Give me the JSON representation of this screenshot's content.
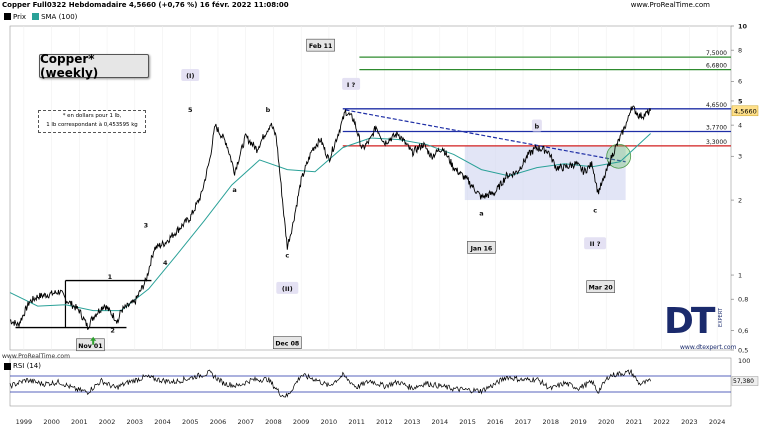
{
  "header": {
    "title": "Copper Full0322 Hebdomadaire 4,5660 (+0,76 %) 16 févr. 2022 11:08:00",
    "site": "www.ProRealTime.com"
  },
  "legend": [
    {
      "label": "Prix",
      "color": "#000000"
    },
    {
      "label": "SMA (100)",
      "color": "#2aa198"
    }
  ],
  "main_title": "Copper* (weekly)",
  "note": {
    "line1": "* en dollars pour 1 lb,",
    "line2": "1 lb correspondant à 0,453595 kg"
  },
  "colors": {
    "price": "#000000",
    "sma": "#2aa198",
    "green": "#2e8b2e",
    "blue": "#1f2fa6",
    "red": "#d21f1f",
    "zone": "#cfd3f0"
  },
  "chart_data": {
    "type": "line",
    "scale": "log",
    "ylim": [
      0.5,
      10
    ],
    "xlim": [
      1999,
      2025
    ],
    "x_ticks": [
      "1999",
      "2000",
      "2001",
      "2002",
      "2003",
      "2004",
      "2005",
      "2006",
      "2007",
      "2008",
      "2009",
      "2010",
      "2011",
      "2012",
      "2013",
      "2014",
      "2015",
      "2016",
      "2017",
      "2018",
      "2019",
      "2020",
      "2021",
      "2022",
      "2023",
      "2024"
    ],
    "y_ticks": [
      "10",
      "8",
      "6",
      "5",
      "4",
      "3",
      "2",
      "1",
      "0,8",
      "0,6",
      "0,5"
    ],
    "series": [
      {
        "name": "Prix",
        "points": [
          [
            1999.0,
            0.66
          ],
          [
            1999.3,
            0.63
          ],
          [
            1999.7,
            0.78
          ],
          [
            2000.0,
            0.82
          ],
          [
            2000.5,
            0.84
          ],
          [
            2000.8,
            0.86
          ],
          [
            2001.0,
            0.8
          ],
          [
            2001.5,
            0.72
          ],
          [
            2001.8,
            0.62
          ],
          [
            2002.0,
            0.68
          ],
          [
            2002.4,
            0.76
          ],
          [
            2002.9,
            0.65
          ],
          [
            2003.0,
            0.72
          ],
          [
            2003.5,
            0.78
          ],
          [
            2003.9,
            0.95
          ],
          [
            2004.2,
            1.28
          ],
          [
            2004.6,
            1.35
          ],
          [
            2005.0,
            1.5
          ],
          [
            2005.5,
            1.7
          ],
          [
            2005.9,
            2.1
          ],
          [
            2006.2,
            2.9
          ],
          [
            2006.4,
            3.98
          ],
          [
            2006.8,
            3.4
          ],
          [
            2007.1,
            2.6
          ],
          [
            2007.5,
            3.6
          ],
          [
            2007.9,
            3.2
          ],
          [
            2008.2,
            3.7
          ],
          [
            2008.4,
            4.05
          ],
          [
            2008.6,
            3.6
          ],
          [
            2008.9,
            1.65
          ],
          [
            2009.0,
            1.3
          ],
          [
            2009.2,
            1.6
          ],
          [
            2009.5,
            2.4
          ],
          [
            2009.9,
            3.2
          ],
          [
            2010.2,
            3.5
          ],
          [
            2010.5,
            2.9
          ],
          [
            2010.8,
            3.6
          ],
          [
            2011.0,
            4.2
          ],
          [
            2011.1,
            4.55
          ],
          [
            2011.4,
            4.2
          ],
          [
            2011.7,
            3.2
          ],
          [
            2012.0,
            3.5
          ],
          [
            2012.2,
            3.95
          ],
          [
            2012.5,
            3.4
          ],
          [
            2013.0,
            3.7
          ],
          [
            2013.5,
            3.1
          ],
          [
            2013.9,
            3.35
          ],
          [
            2014.2,
            3.0
          ],
          [
            2014.6,
            3.25
          ],
          [
            2015.0,
            2.7
          ],
          [
            2015.5,
            2.4
          ],
          [
            2016.0,
            2.05
          ],
          [
            2016.5,
            2.15
          ],
          [
            2016.9,
            2.5
          ],
          [
            2017.3,
            2.6
          ],
          [
            2017.7,
            3.05
          ],
          [
            2018.0,
            3.25
          ],
          [
            2018.4,
            3.15
          ],
          [
            2018.7,
            2.7
          ],
          [
            2019.0,
            2.7
          ],
          [
            2019.4,
            2.8
          ],
          [
            2019.7,
            2.6
          ],
          [
            2020.0,
            2.8
          ],
          [
            2020.2,
            2.15
          ],
          [
            2020.4,
            2.4
          ],
          [
            2020.7,
            3.0
          ],
          [
            2021.0,
            3.55
          ],
          [
            2021.3,
            4.25
          ],
          [
            2021.4,
            4.78
          ],
          [
            2021.7,
            4.35
          ],
          [
            2021.9,
            4.4
          ],
          [
            2022.1,
            4.57
          ]
        ]
      },
      {
        "name": "SMA (100)",
        "points": [
          [
            1999.0,
            0.85
          ],
          [
            2000.0,
            0.75
          ],
          [
            2001.0,
            0.76
          ],
          [
            2002.0,
            0.72
          ],
          [
            2003.0,
            0.72
          ],
          [
            2004.0,
            0.88
          ],
          [
            2005.0,
            1.2
          ],
          [
            2006.0,
            1.65
          ],
          [
            2007.0,
            2.3
          ],
          [
            2008.0,
            2.9
          ],
          [
            2009.0,
            2.65
          ],
          [
            2010.0,
            2.6
          ],
          [
            2011.0,
            3.25
          ],
          [
            2012.0,
            3.55
          ],
          [
            2013.0,
            3.5
          ],
          [
            2014.0,
            3.35
          ],
          [
            2015.0,
            3.05
          ],
          [
            2016.0,
            2.65
          ],
          [
            2017.0,
            2.5
          ],
          [
            2018.0,
            2.7
          ],
          [
            2019.0,
            2.8
          ],
          [
            2020.0,
            2.72
          ],
          [
            2021.0,
            2.85
          ],
          [
            2022.1,
            3.7
          ]
        ]
      }
    ],
    "hlines": [
      {
        "y": 7.5,
        "label": "7,5000",
        "color": "green",
        "from": 2011.6
      },
      {
        "y": 6.68,
        "label": "6,6800",
        "color": "green",
        "from": 2011.6
      },
      {
        "y": 4.65,
        "label": "4,6500",
        "color": "blue",
        "from": 2011.0
      },
      {
        "y": 3.77,
        "label": "3,7700",
        "color": "blue",
        "from": 2011.0
      },
      {
        "y": 3.3,
        "label": "3,3000",
        "color": "red",
        "from": 2011.0
      }
    ],
    "price_label": "4,5660",
    "wave_labels": [
      {
        "text": "(I)",
        "x": 2005.5,
        "y": 6.3,
        "style": "box"
      },
      {
        "text": "5",
        "x": 2005.5,
        "y": 4.6
      },
      {
        "text": "b",
        "x": 2008.3,
        "y": 4.6
      },
      {
        "text": "a",
        "x": 2007.1,
        "y": 2.2
      },
      {
        "text": "3",
        "x": 2003.9,
        "y": 1.58
      },
      {
        "text": "4",
        "x": 2004.6,
        "y": 1.12
      },
      {
        "text": "1",
        "x": 2002.6,
        "y": 0.98
      },
      {
        "text": "2",
        "x": 2002.7,
        "y": 0.6
      },
      {
        "text": "c",
        "x": 2009.0,
        "y": 1.2
      },
      {
        "text": "(II)",
        "x": 2009.0,
        "y": 0.88,
        "style": "box"
      },
      {
        "text": "I ?",
        "x": 2011.3,
        "y": 5.8,
        "style": "box"
      },
      {
        "text": "b",
        "x": 2018.0,
        "y": 3.95,
        "style": "box"
      },
      {
        "text": "a",
        "x": 2016.0,
        "y": 1.77
      },
      {
        "text": "c",
        "x": 2020.1,
        "y": 1.82
      },
      {
        "text": "II ?",
        "x": 2020.1,
        "y": 1.33,
        "style": "box"
      }
    ],
    "date_labels": [
      {
        "text": "Feb 11",
        "x": 2010.2,
        "y": 8.3
      },
      {
        "text": "Jan 16",
        "x": 2016.0,
        "y": 1.28
      },
      {
        "text": "Mar 20",
        "x": 2020.3,
        "y": 0.89
      },
      {
        "text": "Dec 08",
        "x": 2009.0,
        "y": 0.53
      },
      {
        "text": "Nov 01",
        "x": 2001.9,
        "y": 0.52
      }
    ],
    "rsi": {
      "name": "RSI (14)",
      "value_label": "57,380",
      "ylim": [
        0,
        100
      ],
      "y_tick": "100",
      "upper": 70,
      "lower": 30,
      "points": [
        [
          1999.0,
          45
        ],
        [
          1999.6,
          60
        ],
        [
          2000.2,
          50
        ],
        [
          2000.8,
          55
        ],
        [
          2001.3,
          38
        ],
        [
          2001.8,
          30
        ],
        [
          2002.3,
          58
        ],
        [
          2002.8,
          40
        ],
        [
          2003.3,
          55
        ],
        [
          2003.9,
          68
        ],
        [
          2004.4,
          60
        ],
        [
          2004.9,
          55
        ],
        [
          2005.5,
          65
        ],
        [
          2006.2,
          78
        ],
        [
          2006.7,
          52
        ],
        [
          2007.2,
          45
        ],
        [
          2007.7,
          60
        ],
        [
          2008.3,
          62
        ],
        [
          2008.8,
          22
        ],
        [
          2009.0,
          20
        ],
        [
          2009.5,
          72
        ],
        [
          2010.0,
          62
        ],
        [
          2010.5,
          45
        ],
        [
          2011.0,
          72
        ],
        [
          2011.5,
          42
        ],
        [
          2012.0,
          58
        ],
        [
          2012.5,
          45
        ],
        [
          2013.0,
          55
        ],
        [
          2013.5,
          40
        ],
        [
          2014.0,
          52
        ],
        [
          2014.5,
          45
        ],
        [
          2015.0,
          38
        ],
        [
          2015.5,
          35
        ],
        [
          2016.0,
          33
        ],
        [
          2016.5,
          50
        ],
        [
          2016.9,
          68
        ],
        [
          2017.5,
          60
        ],
        [
          2018.0,
          62
        ],
        [
          2018.5,
          38
        ],
        [
          2019.0,
          52
        ],
        [
          2019.5,
          40
        ],
        [
          2020.0,
          55
        ],
        [
          2020.2,
          30
        ],
        [
          2020.6,
          70
        ],
        [
          2021.0,
          76
        ],
        [
          2021.4,
          80
        ],
        [
          2021.7,
          50
        ],
        [
          2022.0,
          55
        ],
        [
          2022.1,
          57
        ]
      ]
    }
  }
}
